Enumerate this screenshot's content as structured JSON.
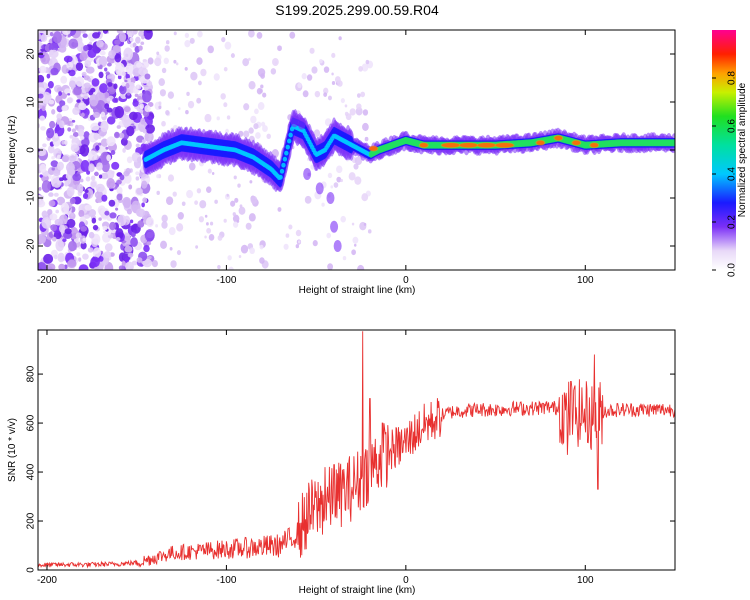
{
  "figure_title": "S199.2025.299.00.59.R04",
  "chart_data": [
    {
      "type": "heatmap",
      "title": "S199.2025.299.00.59.R04",
      "xlabel": "Height of straight line (km)",
      "ylabel": "Frequency (Hz)",
      "xlim": [
        -205,
        150
      ],
      "ylim": [
        -25,
        25
      ],
      "xticks": [
        -200,
        -100,
        0,
        100
      ],
      "xtick_labels": [
        "-200",
        "-100",
        "0",
        "100"
      ],
      "yticks": [
        -20,
        -10,
        0,
        10,
        20
      ],
      "ytick_labels": [
        "-20",
        "-10",
        "0",
        "10",
        "20"
      ],
      "colorbar": {
        "label": "Normalized spectral amplitude",
        "range": [
          0,
          1
        ],
        "ticks": [
          0.0,
          0.2,
          0.4,
          0.6,
          0.8
        ],
        "tick_labels": [
          "0.0",
          "0.2",
          "0.4",
          "0.6",
          "0.8"
        ],
        "colormap": "rainbow (white-purple-blue-cyan-green-yellow-red-magenta)"
      },
      "ridge_center_frequency_hz": [
        [
          -145,
          -2
        ],
        [
          -135,
          0
        ],
        [
          -125,
          1.5
        ],
        [
          -115,
          1
        ],
        [
          -105,
          0.5
        ],
        [
          -95,
          0
        ],
        [
          -85,
          -1.5
        ],
        [
          -75,
          -4
        ],
        [
          -70,
          -6
        ],
        [
          -63,
          5
        ],
        [
          -57,
          4
        ],
        [
          -50,
          -1
        ],
        [
          -45,
          0
        ],
        [
          -40,
          3
        ],
        [
          -35,
          2
        ],
        [
          -30,
          1
        ],
        [
          -25,
          0
        ],
        [
          -20,
          -1
        ],
        [
          -15,
          0
        ],
        [
          0,
          2
        ],
        [
          10,
          1
        ],
        [
          30,
          1
        ],
        [
          50,
          1
        ],
        [
          70,
          1.5
        ],
        [
          85,
          2.5
        ],
        [
          100,
          1
        ],
        [
          120,
          1.5
        ],
        [
          150,
          1.5
        ]
      ]
    },
    {
      "type": "line",
      "xlabel": "Height of straight line (km)",
      "ylabel": "SNR (10 * v/v)",
      "xlim": [
        -205,
        150
      ],
      "ylim": [
        0,
        980
      ],
      "xticks": [
        -200,
        -100,
        0,
        100
      ],
      "xtick_labels": [
        "-200",
        "-100",
        "0",
        "100"
      ],
      "yticks": [
        0,
        200,
        400,
        600,
        800
      ],
      "ytick_labels": [
        "0",
        "200",
        "400",
        "600",
        "800"
      ],
      "color": "#e8302f",
      "series": [
        {
          "name": "SNR",
          "x": [
            -205,
            -190,
            -175,
            -160,
            -150,
            -140,
            -130,
            -120,
            -110,
            -100,
            -90,
            -80,
            -70,
            -60,
            -55,
            -50,
            -45,
            -40,
            -35,
            -32,
            -28,
            -24,
            -20,
            -15,
            -10,
            -5,
            0,
            5,
            10,
            15,
            20,
            25,
            30,
            40,
            50,
            60,
            70,
            80,
            85,
            90,
            95,
            100,
            105,
            110,
            120,
            130,
            140,
            150
          ],
          "y": [
            20,
            22,
            22,
            25,
            30,
            50,
            70,
            75,
            80,
            85,
            90,
            95,
            100,
            150,
            220,
            250,
            280,
            290,
            320,
            330,
            350,
            380,
            420,
            450,
            480,
            500,
            520,
            560,
            590,
            610,
            630,
            645,
            650,
            655,
            655,
            660,
            660,
            665,
            660,
            640,
            640,
            640,
            620,
            650,
            655,
            655,
            655,
            655
          ],
          "spikes": [
            [
              -24,
              975
            ],
            [
              -40,
              430
            ],
            [
              -45,
              420
            ],
            [
              -20,
              700
            ],
            [
              -13,
              600
            ],
            [
              105,
              880
            ],
            [
              107,
              330
            ],
            [
              92,
              770
            ],
            [
              90,
              470
            ]
          ]
        }
      ]
    }
  ]
}
